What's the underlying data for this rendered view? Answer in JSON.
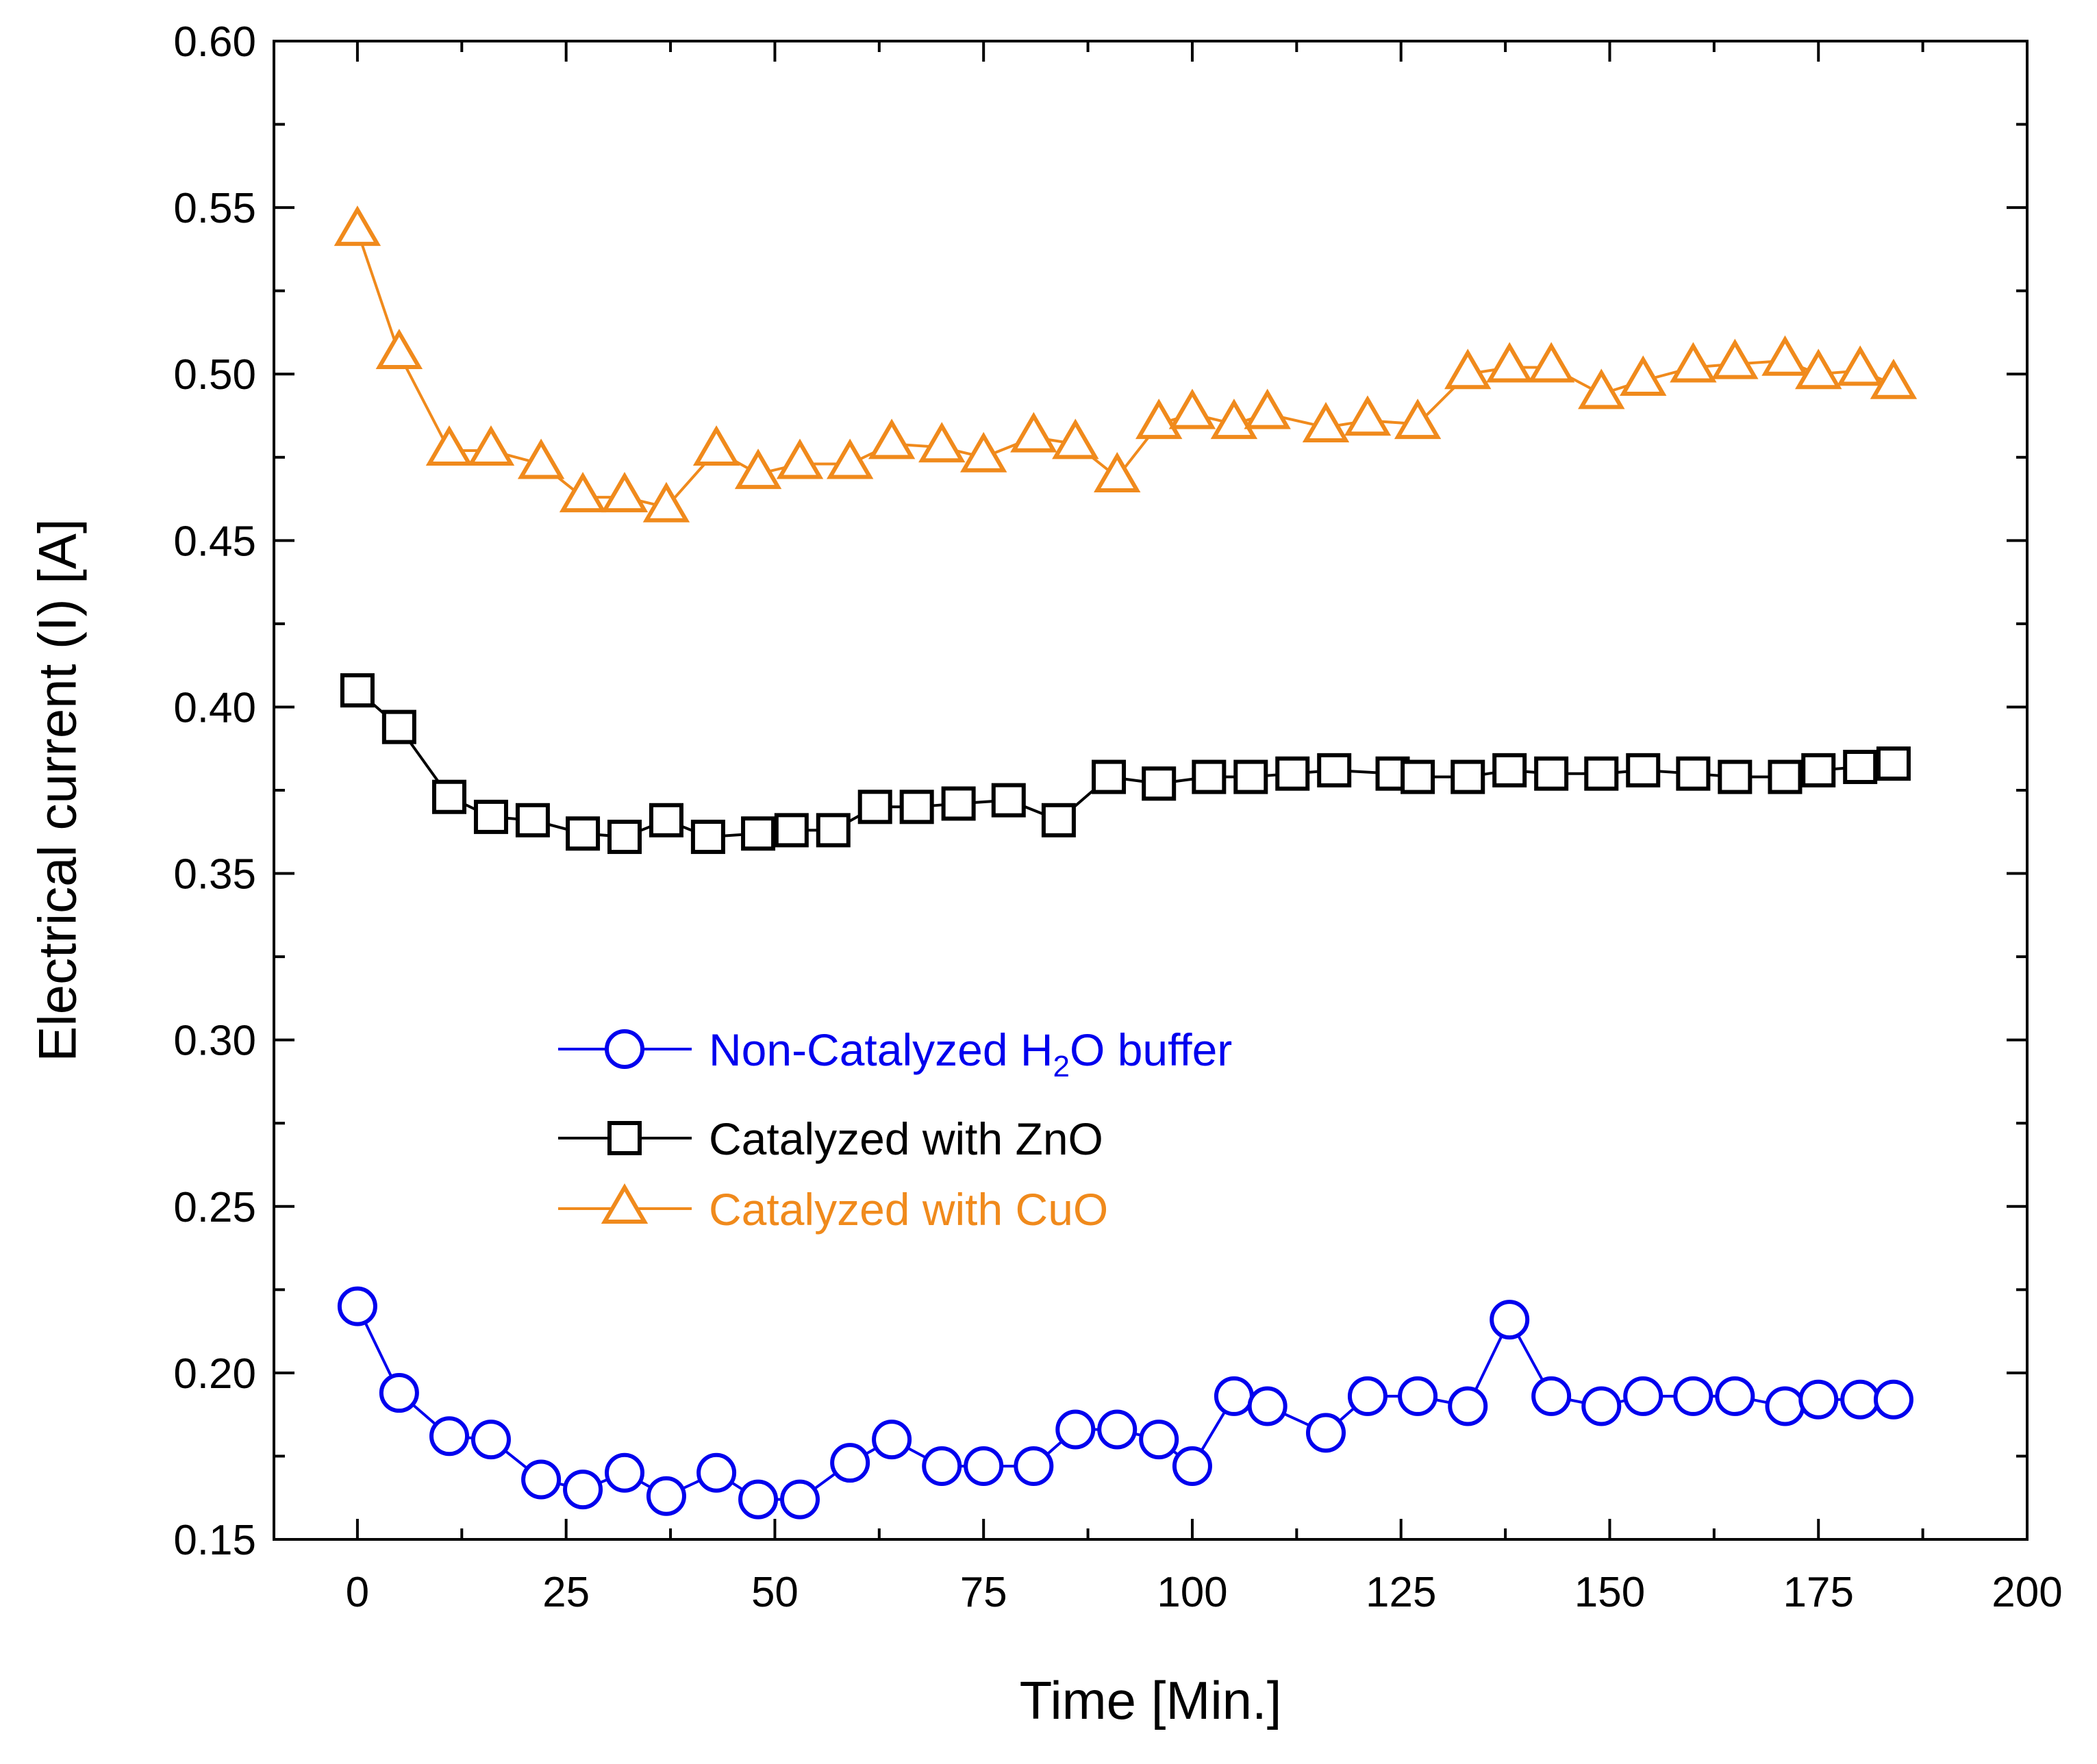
{
  "chart_data": {
    "type": "line",
    "xlabel": "Time [Min.]",
    "ylabel": "Electrical current (I) [A]",
    "xlim": [
      -10,
      200
    ],
    "ylim": [
      0.15,
      0.6
    ],
    "xticks": [
      0,
      25,
      50,
      75,
      100,
      125,
      150,
      175,
      200
    ],
    "xtick_labels": [
      "0",
      "25",
      "50",
      "75",
      "100",
      "125",
      "150",
      "175",
      "200"
    ],
    "yticks": [
      0.15,
      0.2,
      0.25,
      0.3,
      0.35,
      0.4,
      0.45,
      0.5,
      0.55,
      0.6
    ],
    "ytick_labels": [
      "0.15",
      "0.20",
      "0.25",
      "0.30",
      "0.35",
      "0.40",
      "0.45",
      "0.50",
      "0.55",
      "0.60"
    ],
    "grid": false,
    "legend_position": "center-left",
    "series": [
      {
        "name": "Non-Catalyzed H2O buffer",
        "legend_parts": [
          "Non-Catalyzed H",
          "2",
          "O buffer"
        ],
        "color": "#0000ee",
        "marker": "circle",
        "x": [
          0,
          5,
          11,
          16,
          22,
          27,
          32,
          37,
          43,
          48,
          53,
          59,
          64,
          70,
          75,
          81,
          86,
          91,
          96,
          100,
          105,
          109,
          116,
          121,
          127,
          133,
          138,
          143,
          149,
          154,
          160,
          165,
          171,
          175,
          180,
          184
        ],
        "y": [
          0.22,
          0.194,
          0.181,
          0.18,
          0.168,
          0.165,
          0.17,
          0.163,
          0.17,
          0.162,
          0.162,
          0.173,
          0.18,
          0.172,
          0.172,
          0.172,
          0.183,
          0.183,
          0.18,
          0.172,
          0.193,
          0.19,
          0.182,
          0.193,
          0.193,
          0.19,
          0.216,
          0.193,
          0.19,
          0.193,
          0.193,
          0.193,
          0.19,
          0.192,
          0.192,
          0.192
        ]
      },
      {
        "name": "Catalyzed with ZnO",
        "legend_parts": [
          "Catalyzed with ZnO"
        ],
        "color": "#000000",
        "marker": "square",
        "x": [
          0,
          5,
          11,
          16,
          21,
          27,
          32,
          37,
          42,
          48,
          52,
          57,
          62,
          67,
          72,
          78,
          84,
          90,
          96,
          102,
          107,
          112,
          117,
          124,
          127,
          133,
          138,
          143,
          149,
          154,
          160,
          165,
          171,
          175,
          180,
          184
        ],
        "y": [
          0.405,
          0.394,
          0.373,
          0.367,
          0.366,
          0.362,
          0.361,
          0.366,
          0.361,
          0.362,
          0.363,
          0.363,
          0.37,
          0.37,
          0.371,
          0.372,
          0.366,
          0.379,
          0.377,
          0.379,
          0.379,
          0.38,
          0.381,
          0.38,
          0.379,
          0.379,
          0.381,
          0.38,
          0.38,
          0.381,
          0.38,
          0.379,
          0.379,
          0.381,
          0.382,
          0.383
        ]
      },
      {
        "name": "Catalyzed with CuO",
        "legend_parts": [
          "Catalyzed with CuO"
        ],
        "color": "#f08a1c",
        "marker": "triangle",
        "x": [
          0,
          5,
          11,
          16,
          22,
          27,
          32,
          37,
          43,
          48,
          53,
          59,
          64,
          70,
          75,
          81,
          86,
          91,
          96,
          100,
          105,
          109,
          116,
          121,
          127,
          133,
          138,
          143,
          149,
          154,
          160,
          165,
          171,
          175,
          180,
          184
        ],
        "y": [
          0.543,
          0.506,
          0.477,
          0.477,
          0.473,
          0.463,
          0.463,
          0.46,
          0.477,
          0.47,
          0.473,
          0.473,
          0.479,
          0.478,
          0.475,
          0.481,
          0.479,
          0.469,
          0.485,
          0.488,
          0.485,
          0.488,
          0.484,
          0.486,
          0.485,
          0.5,
          0.502,
          0.502,
          0.494,
          0.498,
          0.502,
          0.503,
          0.504,
          0.5,
          0.501,
          0.497
        ]
      }
    ]
  }
}
